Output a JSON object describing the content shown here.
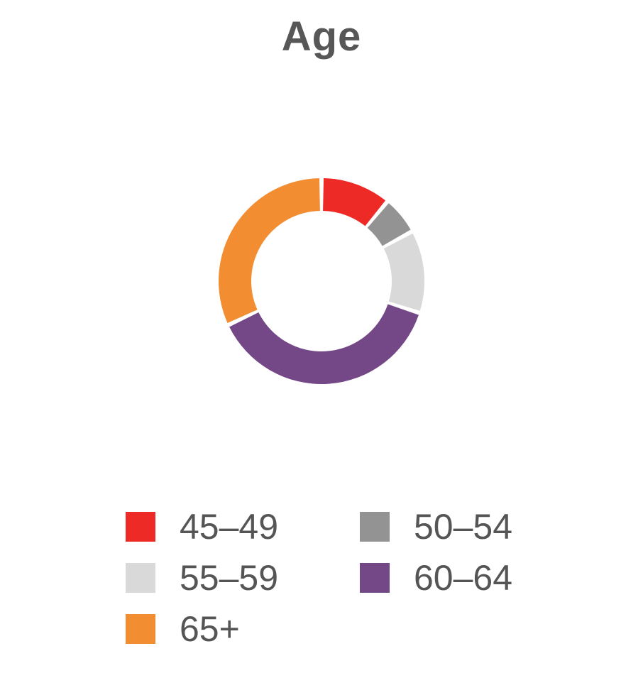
{
  "chart_data": {
    "type": "pie",
    "title": "Age",
    "donut": true,
    "legend_position": "bottom",
    "categories": [
      "45–49",
      "50–54",
      "55–59",
      "60–64",
      "65+"
    ],
    "values": [
      11,
      6,
      13,
      38,
      32
    ],
    "colors": [
      "#ee2a26",
      "#939393",
      "#d9d9d9",
      "#744787",
      "#f28d32"
    ]
  }
}
